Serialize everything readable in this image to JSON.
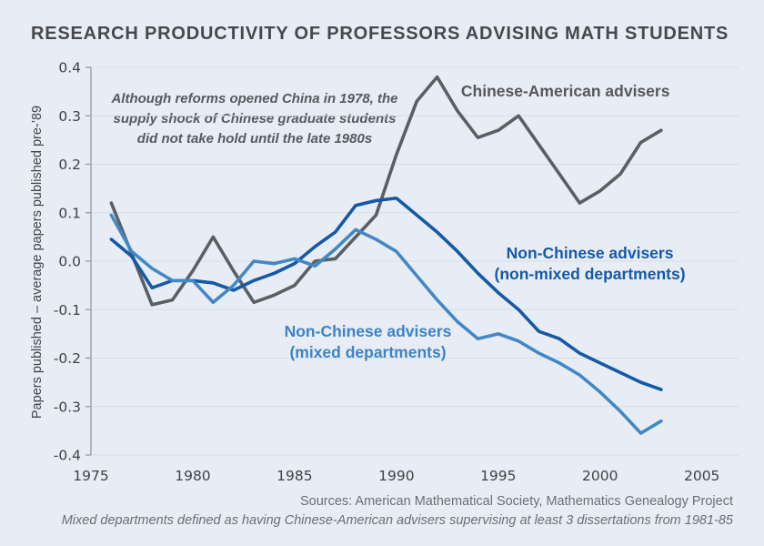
{
  "title": "RESEARCH PRODUCTIVITY OF PROFESSORS ADVISING MATH STUDENTS",
  "annotation": {
    "text": "Although reforms opened China in 1978, the\nsupply shock of Chinese graduate students\ndid not take hold until the late 1980s"
  },
  "footer": {
    "sources": "Sources: American Mathematical Society, Mathematics Genealogy Project",
    "note": "Mixed departments defined as having Chinese-American advisers supervising at least 3 dissertations from 1981-85"
  },
  "colors": {
    "background": "#e8edf5",
    "gridline": "#d6dce6",
    "axis": "#9ba3ad",
    "chinese_american": "#5a5f63",
    "non_mixed": "#1659a5",
    "mixed": "#4288c6"
  },
  "chart_data": {
    "type": "line",
    "title": "RESEARCH PRODUCTIVITY OF PROFESSORS ADVISING MATH STUDENTS",
    "xlabel": "",
    "ylabel": "Papers published – average papers published pre-’89",
    "xlim": [
      1975,
      2006.8
    ],
    "ylim": [
      -0.4,
      0.4
    ],
    "xticks": [
      1975,
      1980,
      1985,
      1990,
      1995,
      2000,
      2005
    ],
    "yticks": [
      0.4,
      0.3,
      0.2,
      0.1,
      0.0,
      -0.1,
      -0.2,
      -0.3,
      -0.4
    ],
    "grid": "horizontal-only",
    "legend_position": "inline-labels",
    "x": [
      1976,
      1977,
      1978,
      1979,
      1980,
      1981,
      1982,
      1983,
      1984,
      1985,
      1986,
      1987,
      1988,
      1989,
      1990,
      1991,
      1992,
      1993,
      1994,
      1995,
      1996,
      1997,
      1998,
      1999,
      2000,
      2001,
      2002,
      2003
    ],
    "series": [
      {
        "name": "Chinese-American advisers",
        "color": "#5a5f63",
        "values": [
          0.12,
          0.015,
          -0.09,
          -0.08,
          -0.02,
          0.05,
          -0.02,
          -0.085,
          -0.07,
          -0.05,
          0.0,
          0.005,
          0.05,
          0.095,
          0.22,
          0.33,
          0.38,
          0.31,
          0.255,
          0.27,
          0.3,
          0.24,
          0.18,
          0.12,
          0.145,
          0.18,
          0.245,
          0.27
        ]
      },
      {
        "name": "Non-Chinese advisers (non-mixed departments)",
        "color": "#1659a5",
        "values": [
          0.045,
          0.01,
          -0.055,
          -0.04,
          -0.04,
          -0.045,
          -0.06,
          -0.04,
          -0.025,
          -0.005,
          0.03,
          0.06,
          0.115,
          0.125,
          0.13,
          0.095,
          0.06,
          0.02,
          -0.025,
          -0.065,
          -0.1,
          -0.145,
          -0.16,
          -0.19,
          -0.21,
          -0.23,
          -0.25,
          -0.265
        ]
      },
      {
        "name": "Non-Chinese advisers (mixed departments)",
        "color": "#4288c6",
        "values": [
          0.095,
          0.02,
          -0.015,
          -0.04,
          -0.04,
          -0.085,
          -0.05,
          0.0,
          -0.005,
          0.005,
          -0.01,
          0.025,
          0.065,
          0.045,
          0.02,
          -0.03,
          -0.08,
          -0.125,
          -0.16,
          -0.15,
          -0.165,
          -0.19,
          -0.21,
          -0.235,
          -0.27,
          -0.31,
          -0.355,
          -0.33
        ]
      }
    ],
    "labels": [
      {
        "lines": [
          "Chinese-American advisers"
        ],
        "x": 1998.3,
        "y": 0.351,
        "color": "#54585c"
      },
      {
        "lines": [
          "Non-Chinese advisers",
          "(non-mixed departments)"
        ],
        "x": 1999.5,
        "y": 0.017,
        "color": "#1659a5"
      },
      {
        "lines": [
          "Non-Chinese advisers",
          "(mixed departments)"
        ],
        "x": 1988.6,
        "y": -0.145,
        "color": "#3d83c4"
      }
    ]
  }
}
